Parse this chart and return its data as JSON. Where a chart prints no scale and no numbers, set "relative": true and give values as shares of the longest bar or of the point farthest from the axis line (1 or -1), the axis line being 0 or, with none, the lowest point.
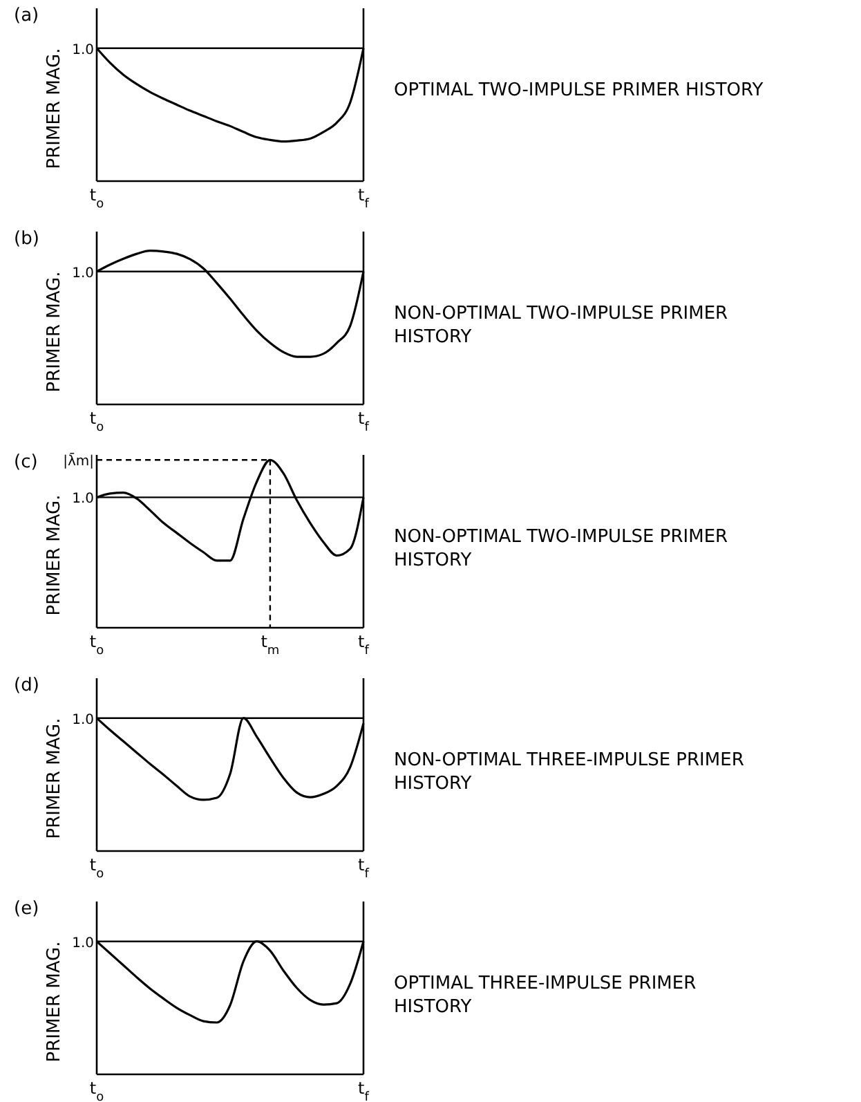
{
  "chart_data": [
    {
      "type": "line",
      "title": "(a)",
      "ylabel": "PRIMER MAG.",
      "relative": true,
      "categories": [
        "t$_{o}$",
        null,
        null,
        null,
        null,
        null,
        null,
        null,
        null,
        null,
        null,
        null,
        null,
        null,
        null,
        null,
        null,
        null,
        null,
        null,
        "t$_{f}$"
      ],
      "ref_lines": [
        {
          "axis": "y",
          "value": 1,
          "line_style": "solid"
        }
      ],
      "annotations": [
        "1.0",
        "OPTIMAL TWO-IMPULSE PRIMER HISTORY"
      ],
      "series": [
        {
          "color": "#000000",
          "values": [
            1,
            0.89,
            0.8,
            0.73,
            0.67,
            0.62,
            0.575,
            0.53,
            0.49,
            0.45,
            0.414,
            0.37,
            0.33,
            0.31,
            0.298,
            0.305,
            0.32,
            0.37,
            0.44,
            0.59,
            1
          ]
        }
      ]
    },
    {
      "type": "line",
      "title": "(b)",
      "ylabel": "PRIMER MAG.",
      "relative": true,
      "categories": [
        "t$_{o}$",
        null,
        null,
        null,
        null,
        null,
        null,
        null,
        null,
        null,
        null,
        null,
        null,
        null,
        null,
        null,
        null,
        null,
        null,
        null,
        "t$_{f}$"
      ],
      "ref_lines": [
        {
          "axis": "y",
          "value": 0.865,
          "line_style": "solid"
        }
      ],
      "annotations": [
        "1.0",
        "NON-OPTIMAL TWO-IMPULSE PRIMER HISTORY"
      ],
      "series": [
        {
          "color": "#000000",
          "values": [
            0.865,
            0.91,
            0.948,
            0.98,
            1,
            0.995,
            0.98,
            0.945,
            0.885,
            0.79,
            0.688,
            0.58,
            0.48,
            0.4,
            0.34,
            0.31,
            0.31,
            0.33,
            0.4,
            0.51,
            0.865
          ]
        }
      ]
    },
    {
      "type": "line",
      "title": "(c)",
      "ylabel": "PRIMER MAG.",
      "relative": true,
      "categories": [
        "t$_{o}$",
        null,
        null,
        null,
        null,
        null,
        null,
        null,
        null,
        null,
        null,
        null,
        null,
        "t$_{m}$",
        null,
        null,
        null,
        null,
        null,
        null,
        "t$_{f}$"
      ],
      "ref_lines": [
        {
          "axis": "y",
          "value": 0.777,
          "line_style": "solid"
        }
      ],
      "annotations": [
        "1.0",
        "|λ̄m|",
        "NON-OPTIMAL TWO-IMPULSE PRIMER HISTORY"
      ],
      "series": [
        {
          "color": "#000000",
          "values": [
            0.777,
            0.8,
            0.805,
            0.77,
            0.7,
            0.625,
            0.565,
            0.505,
            0.45,
            0.4,
            0.4,
            0.65,
            0.87,
            1,
            0.92,
            0.76,
            0.625,
            0.51,
            0.43,
            0.47,
            0.777
          ]
        }
      ]
    },
    {
      "type": "line",
      "title": "(d)",
      "ylabel": "PRIMER MAG.",
      "relative": true,
      "categories": [
        "t$_{o}$",
        null,
        null,
        null,
        null,
        null,
        null,
        null,
        null,
        null,
        null,
        null,
        null,
        null,
        null,
        null,
        null,
        null,
        null,
        null,
        "t$_{f}$"
      ],
      "ref_lines": [
        {
          "axis": "y",
          "value": 1,
          "line_style": "solid"
        }
      ],
      "annotations": [
        "1.0",
        "NON-OPTIMAL THREE-IMPULSE PRIMER HISTORY"
      ],
      "series": [
        {
          "color": "#000000",
          "values": [
            1,
            0.91,
            0.825,
            0.74,
            0.655,
            0.575,
            0.49,
            0.41,
            0.385,
            0.4,
            0.58,
            1,
            0.86,
            0.7,
            0.55,
            0.44,
            0.405,
            0.43,
            0.49,
            0.63,
            0.96
          ]
        }
      ]
    },
    {
      "type": "line",
      "title": "(e)",
      "ylabel": "PRIMER MAG.",
      "relative": true,
      "categories": [
        "t$_{o}$",
        null,
        null,
        null,
        null,
        null,
        null,
        null,
        null,
        null,
        null,
        null,
        null,
        null,
        null,
        null,
        null,
        null,
        null,
        null,
        "t$_{f}$"
      ],
      "ref_lines": [
        {
          "axis": "y",
          "value": 1,
          "line_style": "solid"
        }
      ],
      "annotations": [
        "1.0",
        "OPTIMAL THREE-IMPULSE PRIMER HISTORY"
      ],
      "series": [
        {
          "color": "#000000",
          "values": [
            1,
            0.91,
            0.82,
            0.73,
            0.645,
            0.57,
            0.5,
            0.445,
            0.4,
            0.39,
            0.52,
            0.85,
            1,
            0.93,
            0.78,
            0.65,
            0.56,
            0.525,
            0.535,
            0.68,
            1
          ]
        }
      ]
    }
  ]
}
